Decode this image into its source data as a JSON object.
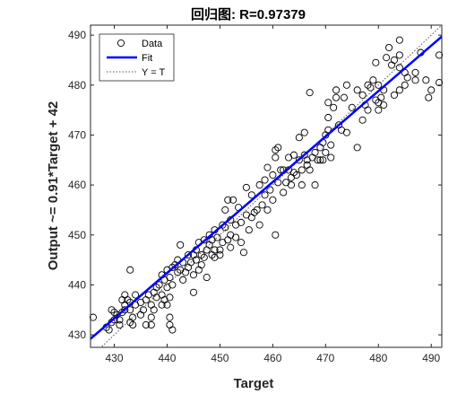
{
  "chart_data": {
    "type": "scatter",
    "title": "回归图: R=0.97379",
    "xlabel": "Target",
    "ylabel": "Output ~= 0.91*Target + 42",
    "xlim": [
      425.5,
      492
    ],
    "ylim": [
      427.5,
      492
    ],
    "xticks": [
      430,
      440,
      450,
      460,
      470,
      480,
      490
    ],
    "yticks": [
      430,
      440,
      450,
      460,
      470,
      480,
      490
    ],
    "grid": false,
    "legend_position": "top-left",
    "legend": [
      "Data",
      "Fit",
      "Y = T"
    ],
    "colors": {
      "data": "#000000",
      "fit": "#0000ff",
      "identity": "#555555"
    },
    "fit": {
      "slope": 0.91,
      "intercept": 42
    },
    "points": [
      [
        426,
        433.5
      ],
      [
        428.5,
        431.5
      ],
      [
        429,
        431
      ],
      [
        429.5,
        432.5
      ],
      [
        429.5,
        435
      ],
      [
        430,
        434.5
      ],
      [
        430,
        433
      ],
      [
        430.5,
        434
      ],
      [
        431,
        433
      ],
      [
        431,
        432
      ],
      [
        431.5,
        437
      ],
      [
        431.5,
        434.5
      ],
      [
        432,
        436
      ],
      [
        432,
        438
      ],
      [
        432,
        435
      ],
      [
        432.5,
        437
      ],
      [
        433,
        432.5
      ],
      [
        433,
        435
      ],
      [
        433,
        436.5
      ],
      [
        433.5,
        432
      ],
      [
        433.5,
        433.5
      ],
      [
        433,
        443
      ],
      [
        434,
        438
      ],
      [
        434,
        436
      ],
      [
        435,
        434
      ],
      [
        435,
        436.5
      ],
      [
        435.5,
        435
      ],
      [
        436,
        437
      ],
      [
        436,
        432
      ],
      [
        436.5,
        438
      ],
      [
        437,
        432
      ],
      [
        437,
        436
      ],
      [
        437,
        433.5
      ],
      [
        437.5,
        438.5
      ],
      [
        437.5,
        435
      ],
      [
        438,
        437.5
      ],
      [
        438,
        439.5
      ],
      [
        438.5,
        440
      ],
      [
        439,
        438
      ],
      [
        439,
        442
      ],
      [
        439,
        436
      ],
      [
        439.5,
        437
      ],
      [
        439.5,
        441
      ],
      [
        440,
        443
      ],
      [
        440,
        439.5
      ],
      [
        440,
        436
      ],
      [
        440.5,
        433.5
      ],
      [
        440.5,
        432
      ],
      [
        440.5,
        437.5
      ],
      [
        440.5,
        441.5
      ],
      [
        441,
        443.5
      ],
      [
        441,
        440
      ],
      [
        441,
        431
      ],
      [
        441.5,
        444
      ],
      [
        442,
        442.5
      ],
      [
        442,
        445
      ],
      [
        442.5,
        448
      ],
      [
        442.5,
        443
      ],
      [
        443,
        441
      ],
      [
        443,
        444.5
      ],
      [
        443.5,
        442.5
      ],
      [
        444,
        446
      ],
      [
        444,
        443.5
      ],
      [
        444.5,
        444.5
      ],
      [
        445,
        442
      ],
      [
        445,
        446
      ],
      [
        445,
        438.5
      ],
      [
        445.5,
        445
      ],
      [
        445.5,
        447
      ],
      [
        446,
        448.5
      ],
      [
        446,
        443
      ],
      [
        446.5,
        444
      ],
      [
        446.5,
        446
      ],
      [
        447,
        449
      ],
      [
        447,
        445.5
      ],
      [
        447.5,
        447
      ],
      [
        447.5,
        441.5
      ],
      [
        448,
        448
      ],
      [
        448,
        450
      ],
      [
        448.5,
        446
      ],
      [
        448.5,
        449
      ],
      [
        449,
        445.5
      ],
      [
        449,
        451
      ],
      [
        449,
        447
      ],
      [
        449.5,
        449.5
      ],
      [
        450,
        447
      ],
      [
        450,
        446
      ],
      [
        450.5,
        448.5
      ],
      [
        450.5,
        452
      ],
      [
        451,
        455
      ],
      [
        451,
        451.5
      ],
      [
        451.5,
        449
      ],
      [
        451.5,
        457
      ],
      [
        452,
        453
      ],
      [
        452,
        450
      ],
      [
        452,
        447.5
      ],
      [
        452.5,
        457
      ],
      [
        453,
        452
      ],
      [
        453,
        449.5
      ],
      [
        453.5,
        455.5
      ],
      [
        454,
        452.5
      ],
      [
        454,
        448.5
      ],
      [
        454.5,
        446.5
      ],
      [
        455,
        459.5
      ],
      [
        455,
        454
      ],
      [
        455.5,
        451
      ],
      [
        456,
        458
      ],
      [
        456,
        453.5
      ],
      [
        456.5,
        454.5
      ],
      [
        457,
        455
      ],
      [
        457.5,
        460
      ],
      [
        457.5,
        452
      ],
      [
        458,
        456
      ],
      [
        458.5,
        461
      ],
      [
        458.5,
        458
      ],
      [
        459,
        455
      ],
      [
        459,
        463.5
      ],
      [
        459.5,
        459
      ],
      [
        460,
        462
      ],
      [
        460,
        457
      ],
      [
        460.5,
        467
      ],
      [
        460.5,
        450
      ],
      [
        460.5,
        465.5
      ],
      [
        461,
        467.5
      ],
      [
        461,
        460.5
      ],
      [
        461.5,
        463
      ],
      [
        462,
        463
      ],
      [
        462,
        458.5
      ],
      [
        462.5,
        460.5
      ],
      [
        463,
        463
      ],
      [
        463,
        465.5
      ],
      [
        463.5,
        461.5
      ],
      [
        463.5,
        460
      ],
      [
        464,
        462.5
      ],
      [
        464,
        466
      ],
      [
        464.5,
        462
      ],
      [
        465,
        465
      ],
      [
        465,
        469.5
      ],
      [
        465.5,
        463
      ],
      [
        465.5,
        460
      ],
      [
        466,
        466
      ],
      [
        466,
        470.5
      ],
      [
        466.5,
        465
      ],
      [
        466.5,
        464
      ],
      [
        467,
        478.5
      ],
      [
        467,
        463
      ],
      [
        467.5,
        465.5
      ],
      [
        468,
        466.5
      ],
      [
        468,
        460
      ],
      [
        468.5,
        465
      ],
      [
        469,
        467.5
      ],
      [
        469,
        465
      ],
      [
        469.5,
        465
      ],
      [
        469.5,
        468.5
      ],
      [
        470,
        470
      ],
      [
        470,
        466.5
      ],
      [
        470.5,
        473.5
      ],
      [
        470.5,
        476.5
      ],
      [
        470.5,
        471
      ],
      [
        471,
        468
      ],
      [
        471,
        465.5
      ],
      [
        471.5,
        475.5
      ],
      [
        472,
        477.5
      ],
      [
        472,
        479
      ],
      [
        472.5,
        472
      ],
      [
        473,
        471
      ],
      [
        473.5,
        477.5
      ],
      [
        474,
        470.5
      ],
      [
        474,
        480
      ],
      [
        475,
        475.5
      ],
      [
        476,
        479
      ],
      [
        476,
        467.5
      ],
      [
        477,
        478
      ],
      [
        477,
        473
      ],
      [
        477.5,
        476
      ],
      [
        478,
        480
      ],
      [
        478,
        475
      ],
      [
        478.5,
        479.5
      ],
      [
        479,
        481
      ],
      [
        479.5,
        477
      ],
      [
        479.5,
        484.5
      ],
      [
        480,
        475
      ],
      [
        480,
        476.5
      ],
      [
        480,
        480
      ],
      [
        480.5,
        477.5
      ],
      [
        481,
        476
      ],
      [
        481,
        479
      ],
      [
        481.5,
        485.5
      ],
      [
        482,
        487.5
      ],
      [
        482.5,
        484
      ],
      [
        483,
        478
      ],
      [
        483,
        485
      ],
      [
        484,
        486
      ],
      [
        484,
        483.5
      ],
      [
        484,
        479
      ],
      [
        484,
        489
      ],
      [
        485,
        482.5
      ],
      [
        485,
        480
      ],
      [
        485.5,
        481.5
      ],
      [
        487,
        481
      ],
      [
        487,
        482.5
      ],
      [
        488,
        486.5
      ],
      [
        489,
        481
      ],
      [
        489.5,
        477.5
      ],
      [
        490,
        479
      ],
      [
        491.5,
        486
      ],
      [
        491.5,
        480.5
      ]
    ]
  }
}
